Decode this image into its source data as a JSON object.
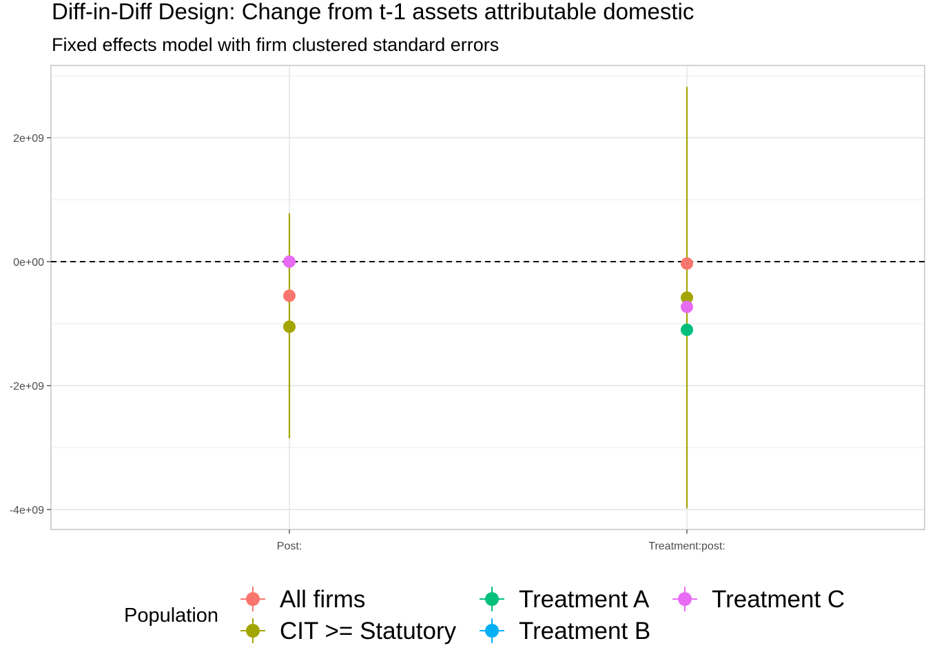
{
  "chart_data": {
    "type": "scatter",
    "title": "Diff-in-Diff Design: Change from t-1 assets attributable domestic",
    "subtitle": "Fixed effects model with firm clustered standard errors",
    "xlabel": "",
    "ylabel": "",
    "categories": [
      "Post:",
      "Treatment:post:"
    ],
    "ylim": [
      -4300000000.0,
      3100000000.0
    ],
    "y_ticks": [
      2000000000.0,
      0,
      -2000000000.0,
      -4000000000.0
    ],
    "y_tick_labels": [
      "2e+09",
      "0e+00",
      "-2e+09",
      "-4e+09"
    ],
    "reference_line": 0,
    "grid": true,
    "legend": {
      "title": "Population",
      "position": "bottom"
    },
    "series": [
      {
        "name": "All firms",
        "color": "#F8766D",
        "values": [
          -550000000.0,
          -30000000.0
        ],
        "lower": [
          -550000000.0,
          -30000000.0
        ],
        "upper": [
          -550000000.0,
          -30000000.0
        ]
      },
      {
        "name": "CIT >= Statutory",
        "color": "#A3A500",
        "values": [
          -1050000000.0,
          -580000000.0
        ],
        "lower": [
          -2850000000.0,
          -3980000000.0
        ],
        "upper": [
          780000000.0,
          2820000000.0
        ]
      },
      {
        "name": "Treatment A",
        "color": "#00BF7D",
        "values": [
          null,
          -1100000000.0
        ],
        "lower": [
          null,
          -1100000000.0
        ],
        "upper": [
          null,
          -1100000000.0
        ]
      },
      {
        "name": "Treatment B",
        "color": "#00B0F6",
        "values": [
          null,
          null
        ],
        "lower": [
          null,
          null
        ],
        "upper": [
          null,
          null
        ]
      },
      {
        "name": "Treatment C",
        "color": "#E76BF3",
        "values": [
          0,
          -730000000.0
        ],
        "lower": [
          0,
          -730000000.0
        ],
        "upper": [
          0,
          -730000000.0
        ]
      }
    ]
  }
}
